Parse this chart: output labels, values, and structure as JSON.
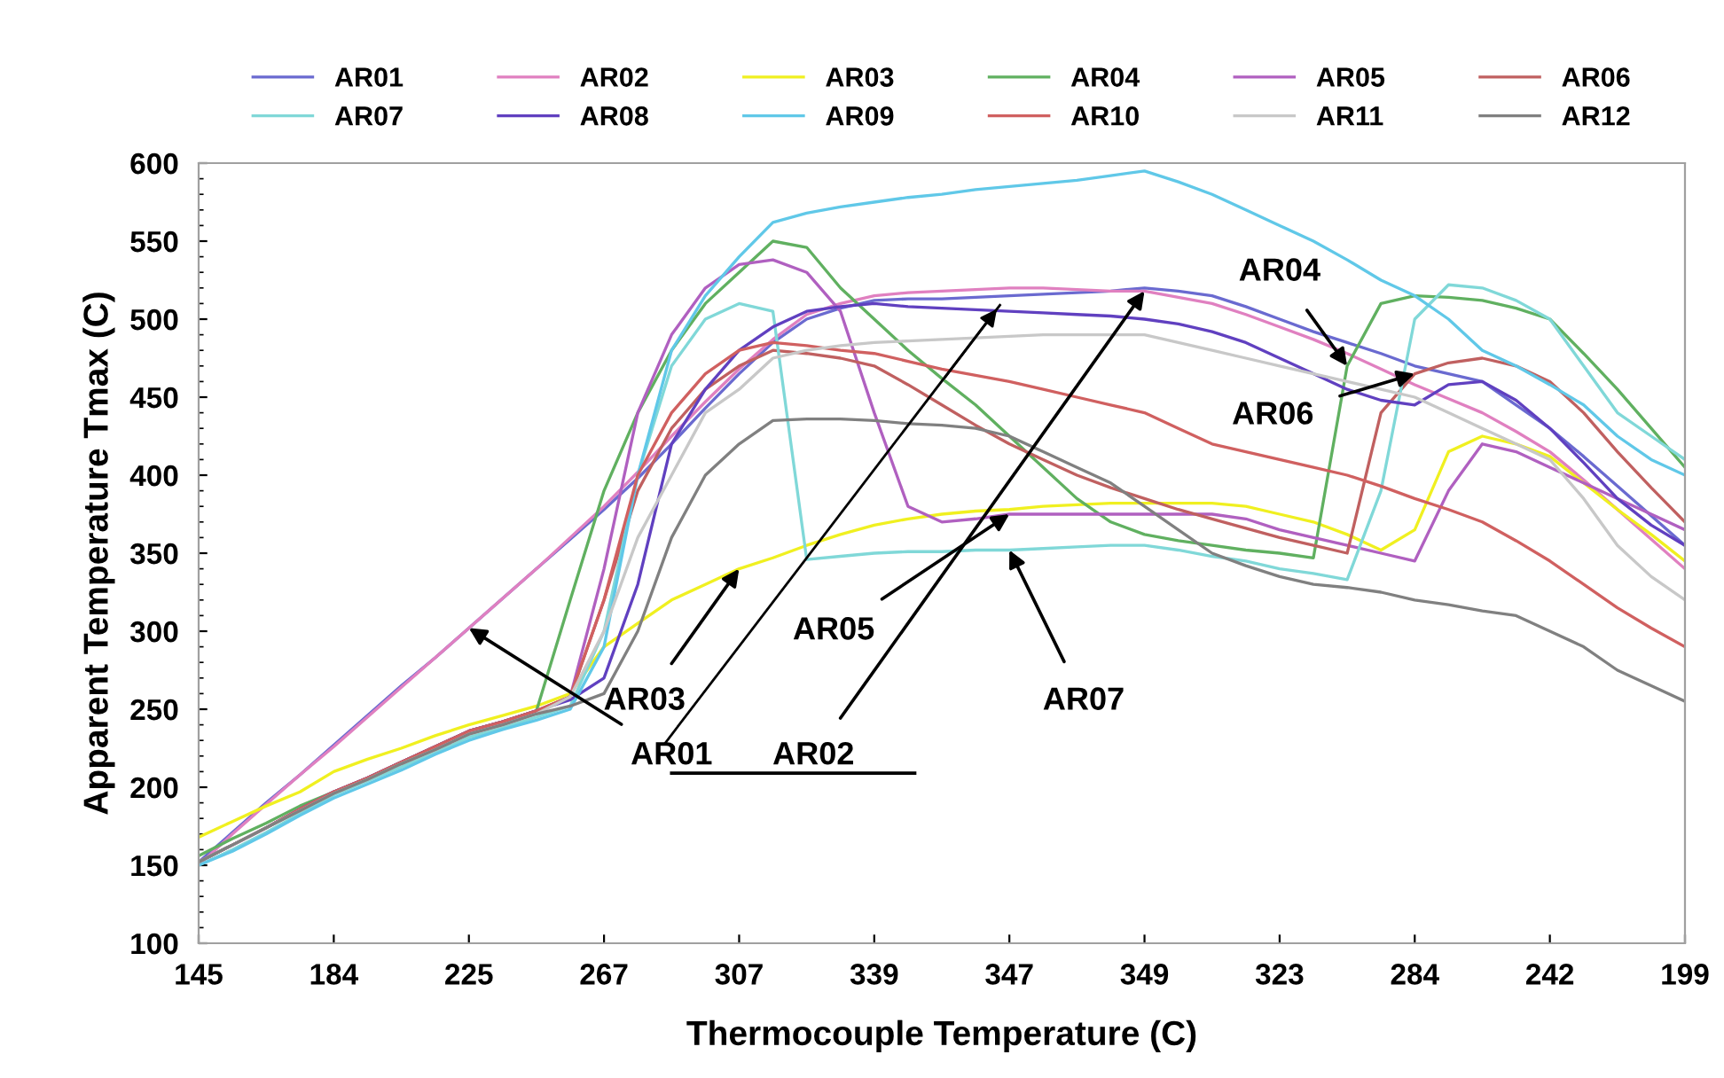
{
  "chart_data": {
    "type": "line",
    "xlabel": "Thermocouple Temperature (C)",
    "ylabel": "Apparent Temperature Tmax (C)",
    "categories": [
      "145",
      null,
      null,
      null,
      "184",
      null,
      null,
      null,
      "225",
      null,
      null,
      null,
      "267",
      null,
      null,
      null,
      "307",
      null,
      null,
      null,
      "339",
      null,
      null,
      null,
      "347",
      null,
      null,
      null,
      "349",
      null,
      null,
      null,
      "323",
      null,
      null,
      null,
      "284",
      null,
      null,
      null,
      "242",
      null,
      null,
      null,
      "199"
    ],
    "ylim": [
      100,
      600
    ],
    "yticks": [
      100,
      150,
      200,
      250,
      300,
      350,
      400,
      450,
      500,
      550,
      600
    ],
    "grid": false,
    "legend": "top",
    "marker": "none",
    "line_style": "solid",
    "series": [
      {
        "name": "AR01",
        "color": "#6a6ad0",
        "values": [
          152,
          171,
          190,
          208,
          227,
          246,
          265,
          283,
          302,
          321,
          340,
          359,
          378,
          398,
          420,
          443,
          465,
          485,
          500,
          507,
          512,
          513,
          513,
          514,
          515,
          516,
          517,
          518,
          520,
          518,
          515,
          508,
          500,
          492,
          485,
          478,
          470,
          465,
          460,
          445,
          430,
          412,
          393,
          374,
          355
        ]
      },
      {
        "name": "AR02",
        "color": "#e080c0",
        "values": [
          150,
          170,
          189,
          208,
          226,
          245,
          264,
          283,
          302,
          321,
          340,
          360,
          380,
          402,
          425,
          447,
          468,
          487,
          503,
          510,
          515,
          517,
          518,
          519,
          520,
          520,
          519,
          518,
          518,
          514,
          510,
          503,
          495,
          487,
          478,
          468,
          458,
          449,
          440,
          428,
          415,
          397,
          378,
          359,
          340
        ]
      },
      {
        "name": "AR03",
        "color": "#f0f020",
        "values": [
          168,
          178,
          188,
          197,
          210,
          218,
          225,
          233,
          240,
          246,
          252,
          260,
          290,
          305,
          320,
          330,
          340,
          347,
          355,
          362,
          368,
          372,
          375,
          377,
          378,
          380,
          381,
          382,
          382,
          382,
          382,
          380,
          375,
          370,
          362,
          352,
          365,
          415,
          425,
          420,
          412,
          395,
          378,
          362,
          345
        ]
      },
      {
        "name": "AR04",
        "color": "#60b060",
        "values": [
          156,
          167,
          177,
          188,
          197,
          206,
          216,
          226,
          236,
          242,
          249,
          320,
          390,
          440,
          480,
          510,
          530,
          550,
          546,
          520,
          500,
          480,
          462,
          445,
          425,
          405,
          385,
          370,
          362,
          358,
          355,
          352,
          350,
          347,
          470,
          510,
          515,
          514,
          512,
          507,
          500,
          478,
          455,
          430,
          405
        ]
      },
      {
        "name": "AR05",
        "color": "#b060c0",
        "values": [
          152,
          163,
          174,
          186,
          197,
          206,
          216,
          226,
          236,
          242,
          249,
          258,
          340,
          440,
          490,
          520,
          535,
          538,
          530,
          505,
          440,
          380,
          370,
          372,
          375,
          375,
          375,
          375,
          375,
          375,
          375,
          372,
          365,
          360,
          355,
          350,
          345,
          390,
          420,
          415,
          405,
          395,
          385,
          375,
          365
        ]
      },
      {
        "name": "AR06",
        "color": "#c06060",
        "values": [
          152,
          163,
          174,
          186,
          197,
          206,
          216,
          226,
          236,
          242,
          249,
          258,
          320,
          390,
          430,
          455,
          470,
          480,
          478,
          475,
          470,
          458,
          445,
          432,
          420,
          410,
          400,
          392,
          385,
          378,
          372,
          366,
          360,
          355,
          350,
          440,
          465,
          472,
          475,
          470,
          460,
          440,
          415,
          392,
          370
        ]
      },
      {
        "name": "AR07",
        "color": "#80d8d8",
        "values": [
          150,
          160,
          171,
          183,
          195,
          204,
          213,
          222,
          232,
          238,
          245,
          252,
          300,
          400,
          470,
          500,
          510,
          505,
          346,
          348,
          350,
          351,
          351,
          352,
          352,
          353,
          354,
          355,
          355,
          352,
          348,
          345,
          340,
          337,
          333,
          390,
          500,
          522,
          520,
          512,
          500,
          470,
          440,
          425,
          410
        ]
      },
      {
        "name": "AR08",
        "color": "#6040c0",
        "values": [
          152,
          163,
          174,
          186,
          197,
          206,
          216,
          226,
          236,
          242,
          249,
          256,
          270,
          330,
          420,
          455,
          480,
          495,
          505,
          508,
          510,
          508,
          507,
          506,
          505,
          504,
          503,
          502,
          500,
          497,
          492,
          485,
          475,
          465,
          455,
          448,
          445,
          458,
          460,
          448,
          430,
          408,
          385,
          368,
          355
        ]
      },
      {
        "name": "AR09",
        "color": "#60c8e8",
        "values": [
          150,
          159,
          170,
          182,
          193,
          202,
          211,
          221,
          230,
          237,
          243,
          250,
          290,
          400,
          480,
          515,
          540,
          562,
          568,
          572,
          575,
          578,
          580,
          583,
          585,
          587,
          589,
          592,
          595,
          588,
          580,
          570,
          560,
          550,
          538,
          525,
          515,
          500,
          480,
          470,
          458,
          445,
          425,
          410,
          400
        ]
      },
      {
        "name": "AR10",
        "color": "#d06060",
        "values": [
          152,
          163,
          174,
          186,
          197,
          206,
          216,
          226,
          236,
          242,
          249,
          258,
          320,
          400,
          440,
          465,
          480,
          485,
          483,
          480,
          478,
          473,
          468,
          464,
          460,
          455,
          450,
          445,
          440,
          430,
          420,
          415,
          410,
          405,
          400,
          393,
          385,
          378,
          370,
          358,
          345,
          330,
          315,
          302,
          290
        ]
      },
      {
        "name": "AR11",
        "color": "#c8c8c8",
        "values": [
          152,
          163,
          174,
          185,
          196,
          205,
          215,
          224,
          234,
          240,
          247,
          258,
          300,
          360,
          400,
          440,
          455,
          475,
          480,
          483,
          485,
          486,
          487,
          488,
          489,
          490,
          490,
          490,
          490,
          485,
          480,
          475,
          470,
          465,
          460,
          455,
          450,
          440,
          430,
          420,
          410,
          385,
          355,
          335,
          320
        ]
      },
      {
        "name": "AR12",
        "color": "#808080",
        "values": [
          152,
          163,
          174,
          185,
          196,
          205,
          215,
          224,
          234,
          240,
          247,
          252,
          260,
          300,
          360,
          400,
          420,
          435,
          436,
          436,
          435,
          433,
          432,
          430,
          425,
          415,
          405,
          395,
          380,
          365,
          350,
          342,
          335,
          330,
          328,
          325,
          320,
          317,
          313,
          310,
          300,
          290,
          275,
          265,
          255
        ]
      }
    ],
    "annotations": [
      {
        "text": "AR01",
        "x": "225",
        "y": 302
      },
      {
        "text": "AR02",
        "x": "349",
        "y": 518
      },
      {
        "text": "AR03",
        "x": "307",
        "y": 340
      },
      {
        "text": "AR04",
        "y": 470
      },
      {
        "text": "AR05",
        "x": "347",
        "y": 375
      },
      {
        "text": "AR06",
        "x": "284",
        "y": 465
      },
      {
        "text": "AR07",
        "x": "347",
        "y": 352
      }
    ]
  }
}
